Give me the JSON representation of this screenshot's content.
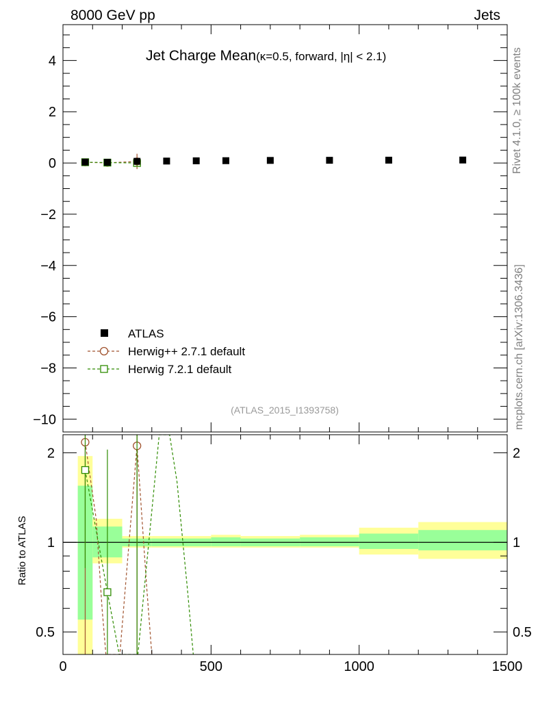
{
  "header": {
    "left": "8000 GeV pp",
    "right": "Jets"
  },
  "side_labels": {
    "rivet": "Rivet 4.1.0, ≥ 100k events",
    "mcplots": "mcplots.cern.ch [arXiv:1306.3436]"
  },
  "chart_data": [
    {
      "type": "scatter",
      "panel": "main",
      "title_main": "Jet Charge Mean",
      "title_sub": "(κ=0.5, forward, |η| < 2.1)",
      "watermark": "(ATLAS_2015_I1393758)",
      "xlim": [
        0,
        1500
      ],
      "ylim": [
        -10.5,
        5.4
      ],
      "y_ticks": [
        4,
        2,
        0,
        -2,
        -4,
        -6,
        -8,
        -10
      ],
      "y_tick_labels": [
        "4",
        "2",
        "0",
        "−2",
        "−4",
        "−6",
        "−8",
        "−10"
      ],
      "legend_position": "bottom-left",
      "series": [
        {
          "name": "ATLAS",
          "color": "#000000",
          "marker": "filled-square",
          "x": [
            75,
            150,
            250,
            350,
            450,
            550,
            700,
            900,
            1100,
            1350
          ],
          "y": [
            0.035,
            0.025,
            0.065,
            0.075,
            0.085,
            0.09,
            0.1,
            0.105,
            0.11,
            0.115
          ]
        },
        {
          "name": "Herwig++ 2.7.1 default",
          "color": "#a0522d",
          "marker": "open-circle",
          "line": "dashed",
          "x": [
            75,
            150,
            250
          ],
          "y": [
            0.025,
            0.005,
            0.06
          ],
          "yerr": [
            0.03,
            0.03,
            0.3
          ]
        },
        {
          "name": "Herwig 7.2.1 default",
          "color": "#2e8b00",
          "marker": "open-square",
          "line": "dashed",
          "x": [
            75,
            150,
            250
          ],
          "y": [
            0.03,
            0.015,
            0.0
          ],
          "yerr": [
            0.03,
            0.03,
            0.1
          ]
        }
      ]
    },
    {
      "type": "scatter",
      "panel": "ratio",
      "ylabel": "Ratio to ATLAS",
      "xlim": [
        0,
        1500
      ],
      "ylim": [
        0.42,
        2.3
      ],
      "x_ticks": [
        0,
        500,
        1000,
        1500
      ],
      "y_ticks": [
        0.5,
        1,
        2
      ],
      "reference_line": 1,
      "bins": [
        {
          "x_low": 50,
          "x_high": 100,
          "yellow": [
            0.42,
            1.95
          ],
          "green": [
            0.55,
            1.55
          ]
        },
        {
          "x_low": 100,
          "x_high": 200,
          "yellow": [
            0.85,
            1.2
          ],
          "green": [
            0.89,
            1.13
          ]
        },
        {
          "x_low": 200,
          "x_high": 300,
          "yellow": [
            0.96,
            1.05
          ],
          "green": [
            0.97,
            1.03
          ]
        },
        {
          "x_low": 300,
          "x_high": 400,
          "yellow": [
            0.96,
            1.05
          ],
          "green": [
            0.97,
            1.03
          ]
        },
        {
          "x_low": 400,
          "x_high": 500,
          "yellow": [
            0.96,
            1.05
          ],
          "green": [
            0.97,
            1.03
          ]
        },
        {
          "x_low": 500,
          "x_high": 600,
          "yellow": [
            0.96,
            1.06
          ],
          "green": [
            0.97,
            1.04
          ]
        },
        {
          "x_low": 600,
          "x_high": 800,
          "yellow": [
            0.96,
            1.05
          ],
          "green": [
            0.97,
            1.03
          ]
        },
        {
          "x_low": 800,
          "x_high": 1000,
          "yellow": [
            0.96,
            1.06
          ],
          "green": [
            0.97,
            1.04
          ]
        },
        {
          "x_low": 1000,
          "x_high": 1200,
          "yellow": [
            0.91,
            1.12
          ],
          "green": [
            0.95,
            1.07
          ]
        },
        {
          "x_low": 1200,
          "x_high": 1500,
          "yellow": [
            0.88,
            1.17
          ],
          "green": [
            0.94,
            1.1
          ]
        }
      ],
      "series": [
        {
          "name": "Herwig++ 2.7.1 default",
          "color": "#a0522d",
          "marker": "open-circle",
          "points": [
            {
              "x": 75,
              "y": 2.17,
              "err_lo": 0.42,
              "err_hi": 2.3
            },
            {
              "x": 250,
              "y": 2.11,
              "err_lo": 0.42,
              "err_hi": 2.3
            }
          ],
          "line": [
            [
              75,
              2.17
            ],
            [
              112,
              1.2
            ],
            [
              132,
              0.6
            ],
            [
              145,
              0.42
            ],
            [
              192,
              0.42
            ],
            [
              250,
              2.11
            ],
            [
              283,
              0.7
            ],
            [
              300,
              0.42
            ]
          ]
        },
        {
          "name": "Herwig 7.2.1 default",
          "color": "#2e8b00",
          "marker": "open-square",
          "points": [
            {
              "x": 75,
              "y": 1.75,
              "err_lo": 0.82,
              "err_hi": 2.3
            },
            {
              "x": 150,
              "y": 0.68,
              "err_lo": 0.42,
              "err_hi": 2.05
            }
          ],
          "extra_verticals": [
            250
          ],
          "line": [
            [
              75,
              1.75
            ],
            [
              150,
              0.68
            ],
            [
              190,
              0.42
            ],
            [
              253,
              0.42
            ],
            [
              325,
              2.3
            ],
            [
              360,
              2.3
            ],
            [
              385,
              1.6
            ],
            [
              420,
              0.7
            ],
            [
              440,
              0.42
            ]
          ]
        }
      ]
    }
  ]
}
